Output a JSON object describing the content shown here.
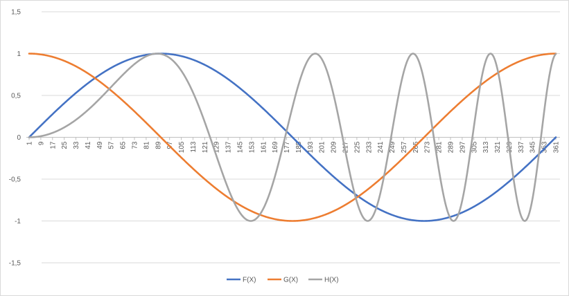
{
  "chart_data": {
    "type": "line",
    "title": "",
    "xlabel": "",
    "ylabel": "",
    "x_range": [
      1,
      361
    ],
    "x_step": 8,
    "x_tick_labels": [
      "1",
      "9",
      "17",
      "25",
      "33",
      "41",
      "49",
      "57",
      "65",
      "73",
      "81",
      "89",
      "97",
      "105",
      "113",
      "121",
      "129",
      "137",
      "145",
      "153",
      "161",
      "169",
      "177",
      "185",
      "193",
      "201",
      "209",
      "217",
      "225",
      "233",
      "241",
      "249",
      "257",
      "265",
      "273",
      "281",
      "289",
      "297",
      "305",
      "313",
      "321",
      "329",
      "337",
      "345",
      "353",
      "361"
    ],
    "ylim": [
      -1.5,
      1.5
    ],
    "y_ticks": [
      1.5,
      1,
      0.5,
      0,
      -0.5,
      -1,
      -1.5
    ],
    "y_tick_labels": [
      "1,5",
      "1",
      "0,5",
      "0",
      "-0,5",
      "-1",
      "-1,5"
    ],
    "grid": "horizontal",
    "legend_position": "bottom",
    "series": [
      {
        "name": "F(X)",
        "color": "#4472c4",
        "formula": "sin(x-1 degrees)"
      },
      {
        "name": "G(X)",
        "color": "#ed7d31",
        "formula": "cos(x-1 degrees)"
      },
      {
        "name": "H(X)",
        "color": "#a5a5a5",
        "formula": "sin of (x-1)^2 over 85, in degrees"
      }
    ]
  }
}
